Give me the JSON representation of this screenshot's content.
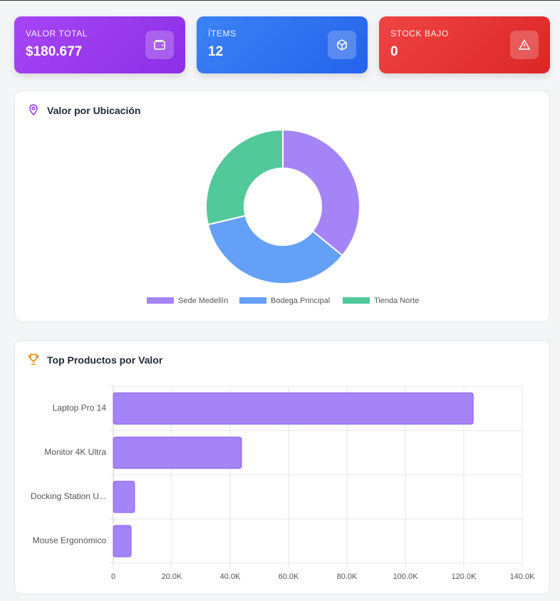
{
  "cards": [
    {
      "label": "VALOR TOTAL",
      "value": "$180.677"
    },
    {
      "label": "ÍTEMS",
      "value": 12
    },
    {
      "label": "STOCK BAJO",
      "value": 0
    }
  ],
  "chart_data": [
    {
      "type": "donut",
      "title": "Valor por Ubicación",
      "categories": [
        "Sede Medellín",
        "Bodega Principal",
        "Tienda Norte"
      ],
      "values": [
        64900,
        63900,
        51900
      ],
      "colors": [
        "#a584f7",
        "#64a0f8",
        "#52c99a"
      ]
    },
    {
      "type": "hbar",
      "title": "Top Productos por Valor",
      "categories": [
        "Laptop Pro 14",
        "Monitor 4K Ultra",
        "Docking Station U...",
        "Mouse Ergonómico"
      ],
      "values": [
        123200,
        43900,
        7300,
        6100
      ],
      "color": "#a584f7",
      "xlim": [
        0,
        140000
      ],
      "xticks": [
        0,
        {
          "value": 20000,
          "label": "20.0K"
        },
        {
          "value": 40000,
          "label": "40.0K"
        },
        {
          "value": 60000,
          "label": "60.0K"
        },
        {
          "value": 80000,
          "label": "80.0K"
        },
        {
          "value": 100000,
          "label": "100.0K"
        },
        {
          "value": 120000,
          "label": "120.0K"
        },
        {
          "value": 140000,
          "label": "140.0K"
        }
      ],
      "grid": true
    }
  ]
}
